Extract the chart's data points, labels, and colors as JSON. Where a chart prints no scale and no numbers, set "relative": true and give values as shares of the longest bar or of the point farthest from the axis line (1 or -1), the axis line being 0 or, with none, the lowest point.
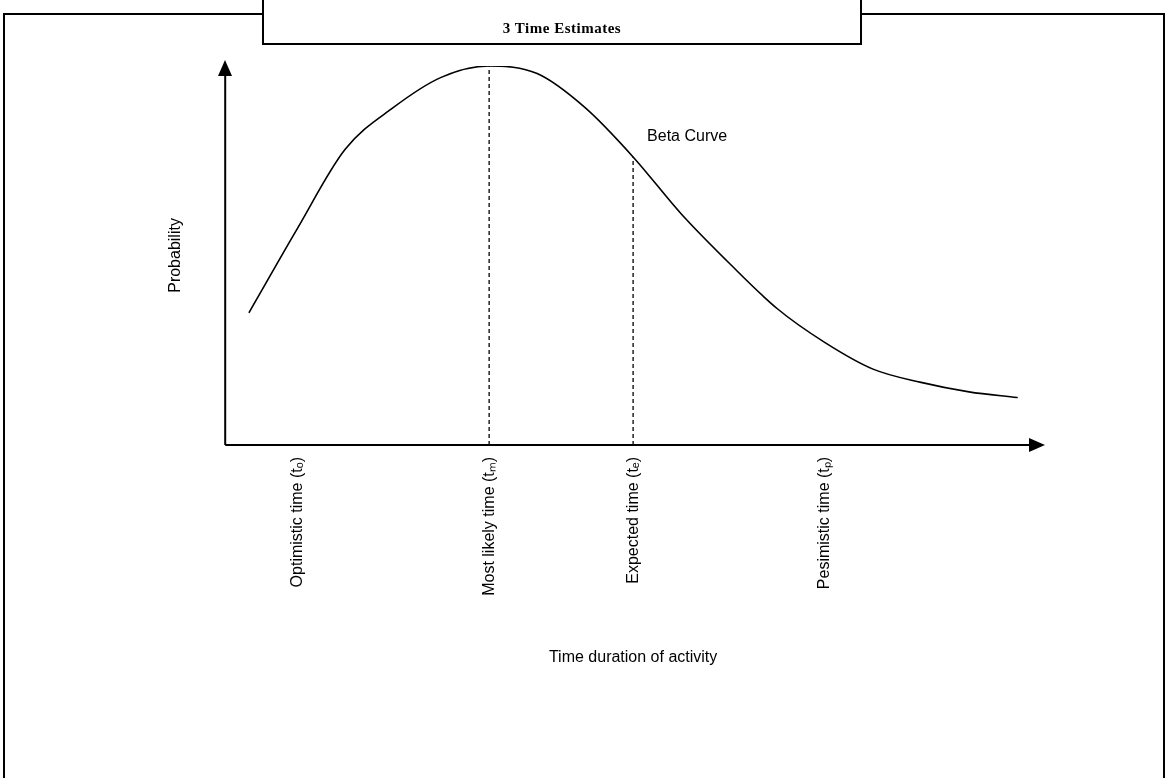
{
  "chart_data": {
    "type": "line",
    "title": "3 Time Estimates",
    "xlabel": "Time duration of activity",
    "ylabel": "Probability",
    "relative": true,
    "grid": false,
    "legend": false,
    "marker": "none",
    "categories": [
      null,
      "Optimistic time (tₒ)",
      null,
      null,
      null,
      "Most likely time (tₘ)",
      null,
      null,
      "Expected time (tₑ)",
      null,
      null,
      null,
      "Pesimistic time (tₚ)",
      null,
      null,
      null,
      null
    ],
    "series": [
      {
        "name": "Beta Curve",
        "color": "#000000",
        "line_style": "solid",
        "values": [
          0.35,
          0.57,
          0.78,
          0.89,
          0.97,
          1,
          0.98,
          0.89,
          0.76,
          0.61,
          0.48,
          0.36,
          0.27,
          0.2,
          0.165,
          0.14,
          0.125
        ]
      }
    ],
    "ref_lines": [
      {
        "axis": "x",
        "value": "Most likely time (tₘ)",
        "color": "#000000",
        "line_style": "dashed"
      },
      {
        "axis": "x",
        "value": "Expected time (tₑ)",
        "color": "#000000",
        "line_style": "dashed"
      }
    ]
  }
}
